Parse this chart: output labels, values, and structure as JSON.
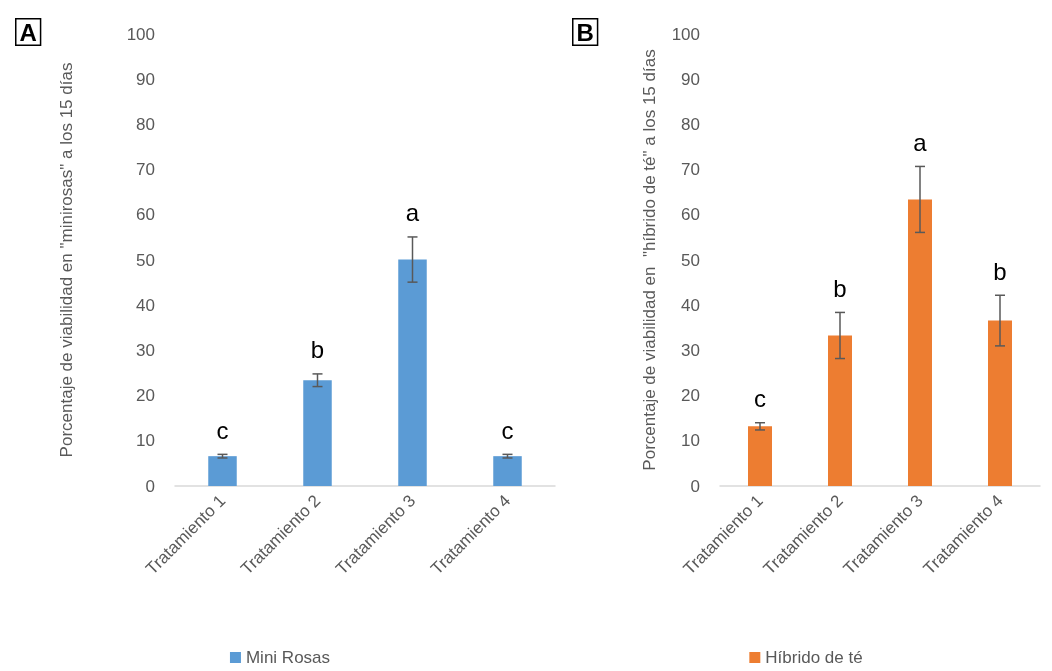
{
  "chart_data": [
    {
      "type": "bar",
      "ylabel": "Porcentaje de viabilidad en \"minirosas\" a los 15 días",
      "categories": [
        "Tratamiento 1",
        "Tratamiento 2",
        "Tratamiento 3",
        "Tratamiento 4"
      ],
      "series": [
        {
          "name": "Mini Rosas",
          "color": "#5b9bd5",
          "values": [
            6.6,
            23.4,
            50.1,
            6.6
          ],
          "errors": [
            0.4,
            1.4,
            5,
            0.4
          ]
        }
      ],
      "ylim": [
        0,
        100
      ],
      "yticks": [
        0,
        10,
        20,
        30,
        40,
        50,
        60,
        70,
        80,
        90,
        100
      ],
      "grid": false,
      "legend": "bottom",
      "annotations": [
        "A",
        {
          "text": "c",
          "x": "Tratamiento 1",
          "y": 6.6
        },
        {
          "text": "b",
          "x": "Tratamiento 2",
          "y": 23.4
        },
        {
          "text": "a",
          "x": "Tratamiento 3",
          "y": 50.1
        },
        {
          "text": "c",
          "x": "Tratamiento 4",
          "y": 6.6
        }
      ]
    },
    {
      "type": "bar",
      "ylabel": "Porcentaje de viabilidad en  \"híbrido de té\" a los 15 días",
      "categories": [
        "Tratamiento 1",
        "Tratamiento 2",
        "Tratamiento 3",
        "Tratamiento 4"
      ],
      "series": [
        {
          "name": "Híbrido de té",
          "color": "#ed7d31",
          "values": [
            13.2,
            33.3,
            63.4,
            36.6
          ],
          "errors": [
            0.8,
            5.1,
            7.3,
            5.6
          ]
        }
      ],
      "ylim": [
        0,
        100
      ],
      "yticks": [
        0,
        10,
        20,
        30,
        40,
        50,
        60,
        70,
        80,
        90,
        100
      ],
      "grid": false,
      "legend": "bottom",
      "annotations": [
        "B",
        {
          "text": "c",
          "x": "Tratamiento 1",
          "y": 13.2
        },
        {
          "text": "b",
          "x": "Tratamiento 2",
          "y": 33.3
        },
        {
          "text": "a",
          "x": "Tratamiento 3",
          "y": 63.4
        },
        {
          "text": "b",
          "x": "Tratamiento 4",
          "y": 36.6
        }
      ]
    }
  ]
}
